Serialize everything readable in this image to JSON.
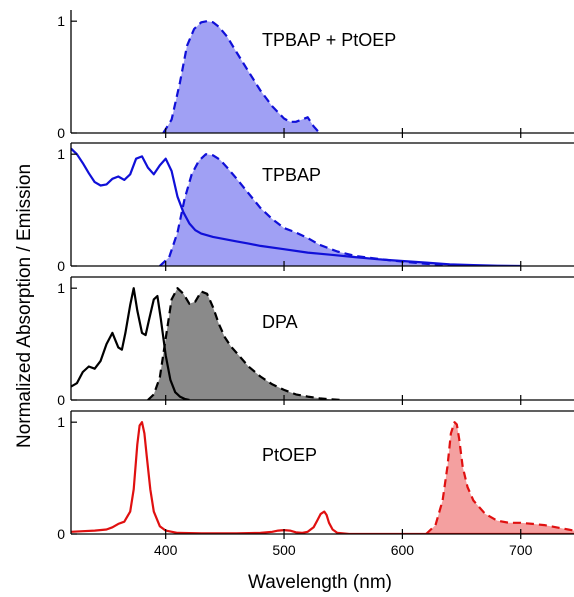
{
  "chart_data": {
    "type": "line",
    "xlabel": "Wavelength (nm)",
    "ylabel": "Normalized Absorption / Emission",
    "xlim": [
      320,
      745
    ],
    "x_ticks": [
      400,
      500,
      600,
      700
    ],
    "colors": {
      "blue": "#1010d8",
      "blue_fill": "#a0a0f4",
      "black": "#000000",
      "gray_fill": "#8a8a8a",
      "red": "#e01010",
      "red_fill": "#f4a0a0"
    },
    "panels": [
      {
        "label": "TPBAP + PtOEP",
        "ylim": [
          0,
          1.1
        ],
        "y_ticks": [
          "0",
          "1"
        ],
        "series": [
          {
            "kind": "emission",
            "style": "dashed-filled",
            "color": "blue",
            "x": [
              398,
              405,
              412,
              418,
              424,
              430,
              435,
              440,
              445,
              452,
              460,
              470,
              480,
              490,
              500,
              505,
              510,
              515,
              520,
              525,
              530
            ],
            "y": [
              0.0,
              0.12,
              0.45,
              0.78,
              0.93,
              0.99,
              1.0,
              0.99,
              0.95,
              0.86,
              0.72,
              0.55,
              0.38,
              0.24,
              0.13,
              0.1,
              0.1,
              0.12,
              0.14,
              0.06,
              0.0
            ]
          }
        ]
      },
      {
        "label": "TPBAP",
        "ylim": [
          0,
          1.1
        ],
        "y_ticks": [
          "0",
          "1"
        ],
        "series": [
          {
            "kind": "emission",
            "style": "dashed-filled",
            "color": "blue",
            "x": [
              395,
              403,
              410,
              416,
              422,
              428,
              434,
              440,
              446,
              452,
              460,
              470,
              480,
              490,
              500,
              510,
              520,
              530,
              545,
              560,
              575,
              590,
              605,
              620,
              635,
              650
            ],
            "y": [
              0.0,
              0.08,
              0.3,
              0.6,
              0.82,
              0.94,
              1.0,
              0.99,
              0.95,
              0.88,
              0.78,
              0.65,
              0.52,
              0.42,
              0.34,
              0.3,
              0.25,
              0.19,
              0.13,
              0.09,
              0.07,
              0.05,
              0.035,
              0.02,
              0.01,
              0.0
            ]
          },
          {
            "kind": "absorption",
            "style": "solid",
            "color": "blue",
            "x": [
              320,
              325,
              330,
              335,
              340,
              345,
              350,
              355,
              360,
              365,
              370,
              375,
              380,
              385,
              390,
              395,
              400,
              405,
              410,
              415,
              420,
              425,
              430,
              440,
              450,
              460,
              470,
              480,
              500,
              520,
              540,
              560,
              580,
              600,
              620,
              640,
              660,
              680,
              700
            ],
            "y": [
              1.05,
              1.0,
              0.92,
              0.83,
              0.75,
              0.72,
              0.73,
              0.78,
              0.8,
              0.77,
              0.82,
              0.96,
              0.98,
              0.88,
              0.82,
              0.9,
              0.96,
              0.85,
              0.62,
              0.48,
              0.38,
              0.32,
              0.29,
              0.26,
              0.24,
              0.22,
              0.2,
              0.18,
              0.15,
              0.12,
              0.1,
              0.08,
              0.06,
              0.045,
              0.03,
              0.015,
              0.008,
              0.003,
              0.0
            ]
          }
        ]
      },
      {
        "label": "DPA",
        "ylim": [
          0,
          1.1
        ],
        "y_ticks": [
          "0",
          "1"
        ],
        "series": [
          {
            "kind": "emission",
            "style": "dashed-filled",
            "color": "black",
            "x": [
              385,
              390,
              395,
              400,
              405,
              410,
              415,
              420,
              425,
              430,
              435,
              440,
              445,
              450,
              455,
              460,
              470,
              480,
              490,
              500,
              510,
              520,
              530,
              540,
              550
            ],
            "y": [
              0.0,
              0.05,
              0.2,
              0.55,
              0.9,
              1.0,
              0.95,
              0.86,
              0.88,
              0.97,
              0.95,
              0.83,
              0.68,
              0.56,
              0.48,
              0.42,
              0.3,
              0.21,
              0.14,
              0.09,
              0.05,
              0.03,
              0.015,
              0.005,
              0.0
            ]
          },
          {
            "kind": "absorption",
            "style": "solid",
            "color": "black",
            "x": [
              320,
              325,
              330,
              335,
              340,
              345,
              350,
              355,
              360,
              363,
              366,
              370,
              373,
              376,
              380,
              383,
              386,
              390,
              393,
              396,
              400,
              404,
              408,
              412,
              416,
              420
            ],
            "y": [
              0.12,
              0.15,
              0.25,
              0.3,
              0.28,
              0.35,
              0.5,
              0.6,
              0.47,
              0.45,
              0.6,
              0.85,
              1.0,
              0.8,
              0.6,
              0.58,
              0.72,
              0.9,
              0.93,
              0.72,
              0.4,
              0.18,
              0.07,
              0.03,
              0.01,
              0.0
            ]
          }
        ]
      },
      {
        "label": "PtOEP",
        "ylim": [
          0,
          1.1
        ],
        "y_ticks": [
          "0",
          "1"
        ],
        "series": [
          {
            "kind": "absorption",
            "style": "solid",
            "color": "red",
            "x": [
              320,
              330,
              340,
              350,
              355,
              360,
              365,
              370,
              373,
              376,
              378,
              380,
              382,
              384,
              387,
              390,
              395,
              400,
              410,
              430,
              460,
              480,
              490,
              495,
              500,
              505,
              510,
              515,
              520,
              525,
              528,
              531,
              534,
              536,
              538,
              541,
              545,
              555,
              570,
              600,
              630,
              660,
              700,
              745
            ],
            "y": [
              0.02,
              0.025,
              0.03,
              0.04,
              0.06,
              0.09,
              0.11,
              0.2,
              0.4,
              0.8,
              0.97,
              1.0,
              0.9,
              0.7,
              0.4,
              0.2,
              0.07,
              0.03,
              0.01,
              0.005,
              0.005,
              0.01,
              0.02,
              0.03,
              0.035,
              0.03,
              0.015,
              0.01,
              0.02,
              0.06,
              0.12,
              0.18,
              0.2,
              0.17,
              0.1,
              0.04,
              0.01,
              0.0,
              0.0,
              0.0,
              0.0,
              0.0,
              0.0,
              0.0
            ]
          },
          {
            "kind": "emission",
            "style": "dashed-filled",
            "color": "red",
            "x": [
              620,
              628,
              634,
              638,
              641,
              644,
              646,
              648,
              651,
              655,
              660,
              665,
              670,
              680,
              690,
              700,
              710,
              720,
              730,
              740,
              745
            ],
            "y": [
              0.0,
              0.08,
              0.3,
              0.6,
              0.9,
              1.0,
              0.98,
              0.85,
              0.6,
              0.42,
              0.3,
              0.24,
              0.18,
              0.12,
              0.1,
              0.1,
              0.09,
              0.08,
              0.06,
              0.04,
              0.03
            ]
          }
        ]
      }
    ]
  }
}
